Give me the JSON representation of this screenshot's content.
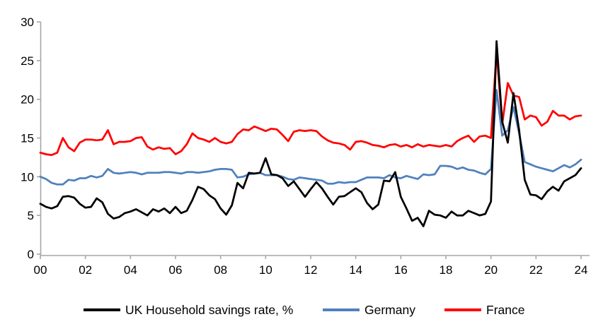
{
  "chart_data": {
    "type": "line",
    "title": "",
    "x_axis": {
      "unit": "quarterly",
      "start": "2000-Q1",
      "end": "2024-Q1",
      "tick_labels": [
        "00",
        "02",
        "04",
        "06",
        "08",
        "10",
        "12",
        "14",
        "16",
        "18",
        "20",
        "22",
        "24"
      ]
    },
    "y_axis": {
      "min": 0,
      "max": 30,
      "tick_step": 5,
      "tick_labels": [
        "0",
        "5",
        "10",
        "15",
        "20",
        "25",
        "30"
      ]
    },
    "grid": false,
    "legend_position": "bottom",
    "series": [
      {
        "name": "UK Household savings rate, %",
        "color": "#000000",
        "values": [
          6.5,
          6.1,
          5.9,
          6.2,
          7.4,
          7.5,
          7.3,
          6.5,
          6.0,
          6.1,
          7.2,
          6.7,
          5.2,
          4.6,
          4.8,
          5.3,
          5.5,
          5.8,
          5.4,
          5.0,
          5.8,
          5.5,
          5.9,
          5.3,
          6.1,
          5.3,
          5.6,
          7.0,
          8.7,
          8.4,
          7.6,
          7.1,
          5.9,
          5.1,
          6.3,
          9.2,
          8.5,
          10.5,
          10.4,
          10.5,
          12.4,
          10.3,
          10.2,
          9.8,
          8.8,
          9.4,
          8.4,
          7.4,
          8.4,
          9.3,
          8.5,
          7.4,
          6.4,
          7.4,
          7.5,
          8.0,
          8.5,
          8.0,
          6.6,
          5.8,
          6.4,
          9.5,
          9.4,
          10.6,
          7.4,
          5.9,
          4.3,
          4.7,
          3.6,
          5.6,
          5.1,
          5.0,
          4.7,
          5.5,
          5.0,
          5.0,
          5.6,
          5.3,
          5.0,
          5.2,
          6.8,
          27.5,
          17.1,
          14.4,
          20.8,
          16.0,
          9.6,
          7.7,
          7.6,
          7.1,
          8.1,
          8.7,
          8.2,
          9.4,
          9.8,
          10.2,
          11.1
        ]
      },
      {
        "name": "Germany",
        "color": "#4F81BD",
        "values": [
          10.0,
          9.7,
          9.2,
          9.0,
          9.0,
          9.6,
          9.5,
          9.8,
          9.8,
          10.1,
          9.9,
          10.1,
          11.0,
          10.5,
          10.4,
          10.5,
          10.6,
          10.5,
          10.3,
          10.5,
          10.5,
          10.5,
          10.6,
          10.6,
          10.5,
          10.4,
          10.6,
          10.6,
          10.5,
          10.6,
          10.7,
          10.9,
          11.0,
          11.0,
          10.9,
          9.9,
          10.0,
          10.3,
          10.4,
          10.5,
          10.2,
          10.2,
          10.2,
          10.0,
          9.7,
          9.6,
          9.9,
          9.8,
          9.7,
          9.6,
          9.5,
          9.1,
          9.1,
          9.3,
          9.2,
          9.3,
          9.3,
          9.6,
          9.9,
          9.9,
          9.9,
          9.8,
          10.2,
          9.9,
          9.8,
          10.1,
          9.9,
          9.7,
          10.3,
          10.2,
          10.3,
          11.4,
          11.4,
          11.3,
          11.0,
          11.2,
          10.9,
          10.8,
          10.5,
          10.3,
          11.0,
          21.2,
          15.3,
          16.0,
          19.0,
          15.6,
          11.9,
          11.6,
          11.3,
          11.1,
          10.9,
          10.7,
          11.1,
          11.5,
          11.2,
          11.6,
          12.2
        ]
      },
      {
        "name": "France",
        "color": "#FF0000",
        "values": [
          13.1,
          12.9,
          12.8,
          13.1,
          15.0,
          13.8,
          13.3,
          14.4,
          14.8,
          14.8,
          14.7,
          14.8,
          16.0,
          14.2,
          14.5,
          14.5,
          14.6,
          15.0,
          15.1,
          13.9,
          13.5,
          13.8,
          13.6,
          13.7,
          12.9,
          13.3,
          14.2,
          15.6,
          15.0,
          14.8,
          14.5,
          15.0,
          14.5,
          14.3,
          14.5,
          15.5,
          16.1,
          16.0,
          16.5,
          16.2,
          15.9,
          16.2,
          16.1,
          15.4,
          14.6,
          15.8,
          16.0,
          15.9,
          16.0,
          15.9,
          15.2,
          14.7,
          14.4,
          14.3,
          14.1,
          13.5,
          14.5,
          14.6,
          14.4,
          14.1,
          14.0,
          13.8,
          14.1,
          14.2,
          13.9,
          14.1,
          13.8,
          14.2,
          13.9,
          14.1,
          14.0,
          13.9,
          14.1,
          13.9,
          14.6,
          15.0,
          15.3,
          14.5,
          15.2,
          15.3,
          15.0,
          26.2,
          16.8,
          22.1,
          20.5,
          20.3,
          17.4,
          17.9,
          17.7,
          16.6,
          17.1,
          18.5,
          17.9,
          17.9,
          17.4,
          17.8,
          17.9
        ]
      }
    ]
  },
  "colors": {
    "axis_line": "#A6A6A6",
    "tick_text": "#000000",
    "background": "#FFFFFF"
  }
}
